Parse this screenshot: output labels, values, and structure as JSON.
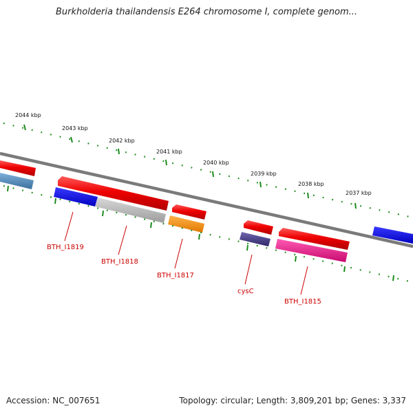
{
  "title": "Burkholderia thailandensis E264 chromosome I, complete genom...",
  "accession_text": "Accession: NC_007651",
  "topology_text": "Topology: circular; Length: 3,809,201 bp; Genes: 3,337",
  "kbp_labels": [
    "2044 kbp",
    "2043 kbp",
    "2042 kbp",
    "2041 kbp",
    "2040 kbp",
    "2039 kbp",
    "2038 kbp",
    "2037 kbp"
  ],
  "gene_labels": [
    "BTH_I1819",
    "BTH_I1818",
    "BTH_I1817",
    "cysC",
    "BTH_I1815"
  ],
  "colors": {
    "backbone": "#7a7a7a",
    "ticks": "#1a8a1a",
    "forward_cds": "#ee0000",
    "label_line": "#cc0000",
    "steelblue_gene": "#4682b4",
    "blue_gene": "#0000ee",
    "gray_gene": "#b0b0b0",
    "orange_gene": "#ff8c00",
    "slate_gene": "#483d8b",
    "pink_gene": "#ee1289"
  }
}
